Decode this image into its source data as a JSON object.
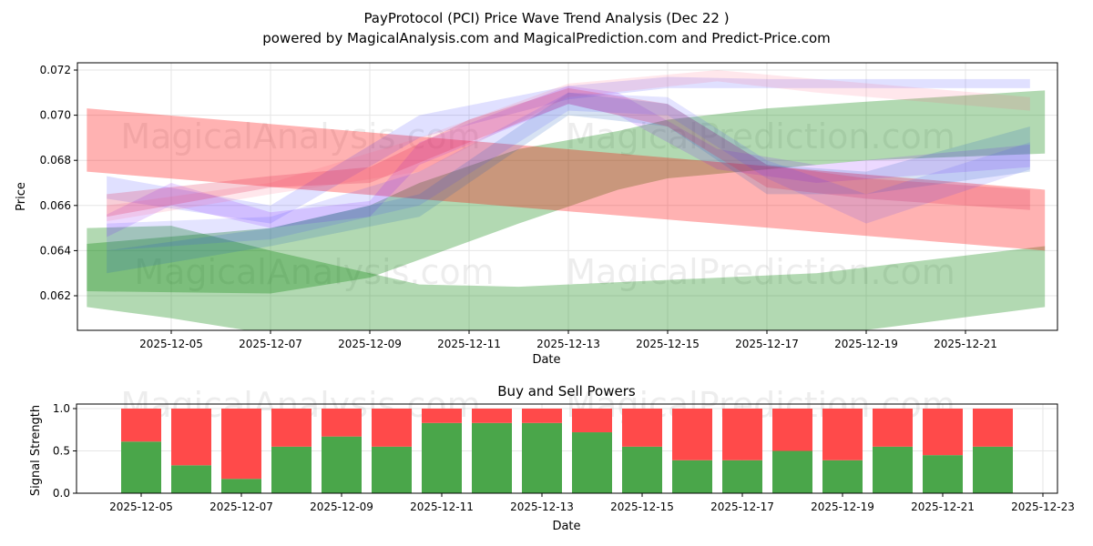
{
  "title": "PayProtocol (PCI) Price Wave Trend Analysis (Dec 22 )",
  "subtitle": "powered by MagicalAnalysis.com and MagicalPrediction.com and Predict-Price.com",
  "watermarks": [
    "MagicalAnalysis.com",
    "MagicalPrediction.com"
  ],
  "chart_data": [
    {
      "type": "area",
      "title": "",
      "xlabel": "Date",
      "ylabel": "Price",
      "ylim": [
        0.0605,
        0.0723
      ],
      "xlim_days_from_2025-12-05": [
        -1.9,
        17.9
      ],
      "yticks": [
        "0.062",
        "0.064",
        "0.066",
        "0.068",
        "0.070",
        "0.072"
      ],
      "ytick_values": [
        0.062,
        0.064,
        0.066,
        0.068,
        0.07,
        0.072
      ],
      "xticks": [
        "2025-12-05",
        "2025-12-07",
        "2025-12-09",
        "2025-12-11",
        "2025-12-13",
        "2025-12-15",
        "2025-12-17",
        "2025-12-19",
        "2025-12-21"
      ],
      "grid": true,
      "bands": [
        {
          "color": "#008000",
          "alpha": 0.3,
          "points": [
            [
              -1.7,
              0.0615,
              0.065
            ],
            [
              0,
              0.061,
              0.0651
            ],
            [
              2,
              0.0603,
              0.064
            ],
            [
              5,
              0.0598,
              0.0625
            ],
            [
              7,
              0.0598,
              0.0624
            ],
            [
              10,
              0.06,
              0.0627
            ],
            [
              13,
              0.0602,
              0.063
            ],
            [
              17.6,
              0.0615,
              0.0642
            ]
          ]
        },
        {
          "color": "#008000",
          "alpha": 0.3,
          "points": [
            [
              -1.7,
              0.0622,
              0.0643
            ],
            [
              2,
              0.0621,
              0.065
            ],
            [
              4,
              0.0628,
              0.066
            ],
            [
              5,
              0.0636,
              0.067
            ],
            [
              7,
              0.0652,
              0.0685
            ],
            [
              9,
              0.0667,
              0.0693
            ],
            [
              10,
              0.0672,
              0.0698
            ],
            [
              12,
              0.0676,
              0.0703
            ],
            [
              14,
              0.068,
              0.0706
            ],
            [
              17.6,
              0.0683,
              0.0711
            ]
          ]
        },
        {
          "color": "#ff0000",
          "alpha": 0.3,
          "points": [
            [
              -1.7,
              0.0675,
              0.0703
            ],
            [
              17.6,
              0.064,
              0.0667
            ]
          ]
        },
        {
          "color": "#0000ff",
          "alpha": 0.12,
          "points": [
            [
              -1.3,
              0.0663,
              0.0673
            ],
            [
              2,
              0.0652,
              0.066
            ],
            [
              5,
              0.069,
              0.07
            ],
            [
              8,
              0.0707,
              0.0713
            ],
            [
              10,
              0.0712,
              0.0717
            ],
            [
              12,
              0.0712,
              0.0716
            ],
            [
              17.3,
              0.0712,
              0.0716
            ]
          ]
        },
        {
          "color": "#8000ff",
          "alpha": 0.15,
          "points": [
            [
              -1.3,
              0.0646,
              0.0656
            ],
            [
              0,
              0.066,
              0.067
            ],
            [
              2,
              0.065,
              0.0657
            ],
            [
              4,
              0.0655,
              0.0662
            ],
            [
              5,
              0.0678,
              0.0688
            ],
            [
              8,
              0.0705,
              0.0713
            ],
            [
              9,
              0.07,
              0.071
            ],
            [
              11,
              0.0676,
              0.0685
            ],
            [
              13,
              0.067,
              0.0678
            ],
            [
              17.3,
              0.0677,
              0.0687
            ]
          ]
        },
        {
          "color": "#1f5fbf",
          "alpha": 0.18,
          "points": [
            [
              -1.3,
              0.063,
              0.064
            ],
            [
              2,
              0.0642,
              0.065
            ],
            [
              5,
              0.0655,
              0.0665
            ],
            [
              8,
              0.07,
              0.071
            ],
            [
              10,
              0.0695,
              0.0705
            ],
            [
              12,
              0.0665,
              0.0678
            ],
            [
              14,
              0.0665,
              0.0675
            ],
            [
              17.3,
              0.0675,
              0.0695
            ]
          ]
        },
        {
          "color": "#ff6080",
          "alpha": 0.15,
          "points": [
            [
              -1.3,
              0.0653,
              0.066
            ],
            [
              2,
              0.0665,
              0.067
            ],
            [
              5,
              0.0675,
              0.069
            ],
            [
              8,
              0.0708,
              0.0714
            ],
            [
              11,
              0.0715,
              0.072
            ],
            [
              13,
              0.071,
              0.0716
            ],
            [
              17.3,
              0.0702,
              0.0708
            ]
          ]
        },
        {
          "color": "#e0204a",
          "alpha": 0.22,
          "points": [
            [
              -1.3,
              0.0655,
              0.0665
            ],
            [
              2,
              0.0668,
              0.0673
            ],
            [
              4,
              0.067,
              0.0677
            ],
            [
              6,
              0.0688,
              0.0698
            ],
            [
              8,
              0.0705,
              0.0712
            ],
            [
              10,
              0.0695,
              0.0705
            ],
            [
              12,
              0.0668,
              0.0678
            ],
            [
              14,
              0.0663,
              0.0672
            ],
            [
              17.3,
              0.0658,
              0.0667
            ]
          ]
        },
        {
          "color": "#4040ff",
          "alpha": 0.14,
          "points": [
            [
              -1.3,
              0.064,
              0.0652
            ],
            [
              2,
              0.0645,
              0.0655
            ],
            [
              5,
              0.066,
              0.0675
            ],
            [
              8,
              0.0702,
              0.071
            ],
            [
              10,
              0.07,
              0.0708
            ],
            [
              12,
              0.0672,
              0.068
            ],
            [
              14,
              0.0652,
              0.0665
            ],
            [
              17.3,
              0.0676,
              0.0688
            ]
          ]
        }
      ]
    },
    {
      "type": "bar",
      "title": "Buy and Sell Powers",
      "xlabel": "Date",
      "ylabel": "Signal Strength",
      "ylim": [
        0,
        1.05
      ],
      "yticks": [
        "0.0",
        "0.5",
        "1.0"
      ],
      "ytick_values": [
        0,
        0.5,
        1.0
      ],
      "xticks": [
        "2025-12-05",
        "2025-12-07",
        "2025-12-09",
        "2025-12-11",
        "2025-12-13",
        "2025-12-15",
        "2025-12-17",
        "2025-12-19",
        "2025-12-21",
        "2025-12-23"
      ],
      "grid": true,
      "categories": [
        "2025-12-05",
        "2025-12-06",
        "2025-12-07",
        "2025-12-08",
        "2025-12-09",
        "2025-12-10",
        "2025-12-11",
        "2025-12-12",
        "2025-12-13",
        "2025-12-14",
        "2025-12-15",
        "2025-12-16",
        "2025-12-17",
        "2025-12-18",
        "2025-12-19",
        "2025-12-20",
        "2025-12-21",
        "2025-12-22"
      ],
      "series": [
        {
          "name": "Buy",
          "color": "#4aa64a",
          "values": [
            0.61,
            0.33,
            0.17,
            0.55,
            0.67,
            0.55,
            0.83,
            0.83,
            0.83,
            0.72,
            0.55,
            0.39,
            0.39,
            0.5,
            0.39,
            0.55,
            0.45,
            0.55
          ]
        },
        {
          "name": "Sell",
          "color": "#ff4a4a",
          "values": [
            0.39,
            0.67,
            0.83,
            0.45,
            0.33,
            0.45,
            0.17,
            0.17,
            0.17,
            0.28,
            0.45,
            0.61,
            0.61,
            0.5,
            0.61,
            0.45,
            0.55,
            0.45
          ]
        }
      ]
    }
  ]
}
